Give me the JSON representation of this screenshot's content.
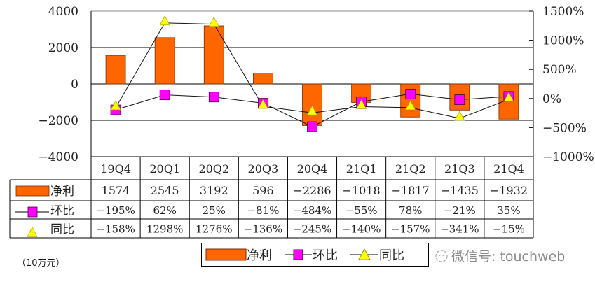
{
  "chart_data": {
    "type": "bar+line",
    "title": "",
    "categories": [
      "19Q4",
      "20Q1",
      "20Q2",
      "20Q3",
      "20Q4",
      "21Q1",
      "21Q2",
      "21Q3",
      "21Q4"
    ],
    "series": [
      {
        "name": "净利",
        "type": "bar",
        "axis": "left",
        "color": "#ff6600",
        "values": [
          1574,
          2545,
          3192,
          596,
          -2286,
          -1018,
          -1817,
          -1435,
          -1932
        ]
      },
      {
        "name": "环比",
        "type": "line",
        "axis": "right",
        "marker": "square",
        "color": "#ff00ff",
        "values": [
          -195,
          62,
          25,
          -81,
          -484,
          -55,
          78,
          -21,
          35
        ],
        "display": [
          "-195%",
          "62%",
          "25%",
          "-81%",
          "-484%",
          "-55%",
          "78%",
          "-21%",
          "35%"
        ]
      },
      {
        "name": "同比",
        "type": "line",
        "axis": "right",
        "marker": "triangle",
        "color": "#ffff00",
        "values": [
          -158,
          1298,
          1276,
          -136,
          -245,
          -140,
          -157,
          -341,
          -15
        ],
        "display": [
          "-158%",
          "1298%",
          "1276%",
          "-136%",
          "-245%",
          "-140%",
          "-157%",
          "-341%",
          "-15%"
        ]
      }
    ],
    "left_axis": {
      "ylim": [
        -4000,
        4000
      ],
      "ticks": [
        4000,
        2000,
        0,
        -2000,
        -4000
      ],
      "tick_labels": [
        "4000",
        "2000",
        "0",
        "−2000",
        "−4000"
      ]
    },
    "right_axis": {
      "ylim": [
        -1000,
        1500
      ],
      "ticks": [
        1500,
        1000,
        500,
        0,
        -500,
        -1000
      ],
      "tick_labels": [
        "1500%",
        "1000%",
        "500%",
        "0%",
        "−500%",
        "−1000%"
      ]
    },
    "grid": true,
    "data_table": true,
    "legend_position": "bottom",
    "unit_label": "（10万元）"
  },
  "legend": {
    "items": [
      {
        "label": "净利",
        "marker": "bar"
      },
      {
        "label": "环比",
        "marker": "square"
      },
      {
        "label": "同比",
        "marker": "triangle"
      }
    ]
  },
  "unit_label": "（10万元）",
  "watermark": {
    "text": "微信号: touchweb"
  }
}
